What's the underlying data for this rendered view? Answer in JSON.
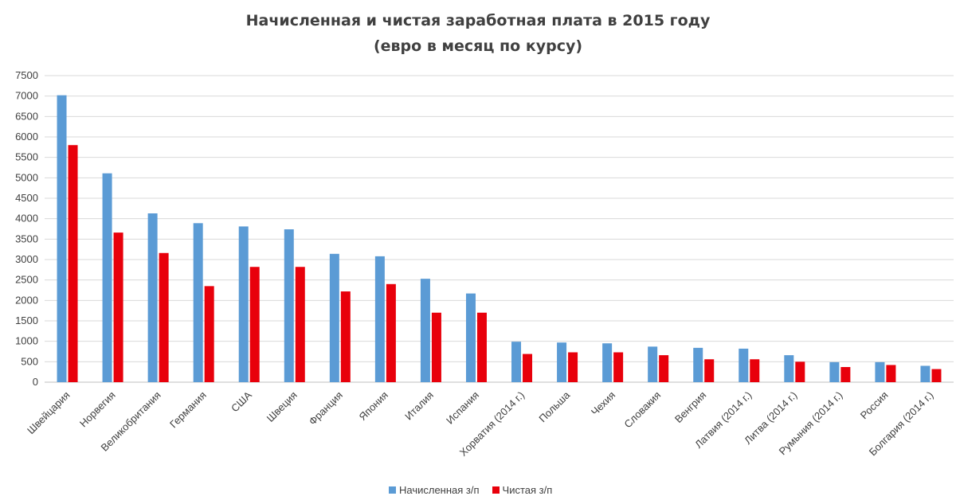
{
  "chart_data": {
    "type": "bar",
    "title": "Начисленная и чистая заработная плата в 2015 году",
    "subtitle": "(евро в месяц по курсу)",
    "categories": [
      "Швейцария",
      "Норвегия",
      "Великобритания",
      "Германия",
      "США",
      "Швеция",
      "Франция",
      "Япония",
      "Италия",
      "Испания",
      "Хорватия (2014 г.)",
      "Польша",
      "Чехия",
      "Словакия",
      "Венгрия",
      "Латвия (2014 г.)",
      "Литва (2014 г.)",
      "Румыния (2014 г.)",
      "Россия",
      "Болгария (2014 г.)"
    ],
    "series": [
      {
        "name": "Начисленная з/п",
        "color": "#5b9bd5",
        "values": [
          7020,
          5110,
          4130,
          3890,
          3810,
          3740,
          3140,
          3080,
          2530,
          2170,
          990,
          970,
          950,
          870,
          840,
          820,
          660,
          490,
          490,
          400
        ]
      },
      {
        "name": "Чистая з/п",
        "color": "#e8000b",
        "values": [
          5800,
          3660,
          3160,
          2350,
          2820,
          2820,
          2220,
          2400,
          1700,
          1700,
          690,
          730,
          730,
          660,
          560,
          560,
          500,
          370,
          420,
          320
        ]
      }
    ],
    "yticks": [
      "0",
      "500",
      "1000",
      "1500",
      "2000",
      "2500",
      "3000",
      "3500",
      "4000",
      "4500",
      "5000",
      "5500",
      "6000",
      "6500",
      "7000",
      "7500"
    ],
    "ylim": [
      0,
      7500
    ],
    "xlabel": "",
    "ylabel": "",
    "grid": true,
    "legend_position": "bottom"
  }
}
